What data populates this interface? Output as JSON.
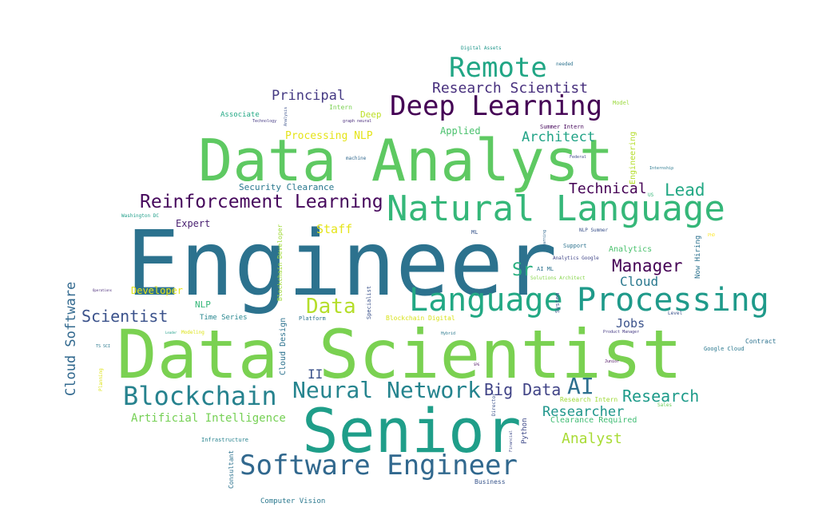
{
  "words": [
    {
      "text": "Engineer",
      "color": "#2c728e"
    },
    {
      "text": "Data Scientist",
      "color": "#7ad151"
    },
    {
      "text": "Data Analyst",
      "color": "#5ec962"
    },
    {
      "text": "Senior",
      "color": "#1f9e89"
    },
    {
      "text": "Natural Language",
      "color": "#35b779"
    },
    {
      "text": "Language",
      "color": "#22a884"
    },
    {
      "text": "Processing",
      "color": "#1f9a8a"
    },
    {
      "text": "Deep Learning",
      "color": "#440154"
    },
    {
      "text": "Remote",
      "color": "#21a685"
    },
    {
      "text": "Software Engineer",
      "color": "#31688e"
    },
    {
      "text": "Blockchain",
      "color": "#26828e"
    },
    {
      "text": "Neural Network",
      "color": "#25848e"
    },
    {
      "text": "Reinforcement Learning",
      "color": "#46085c"
    },
    {
      "text": "Research Scientist",
      "color": "#472f7d"
    },
    {
      "text": "Principal",
      "color": "#443983"
    },
    {
      "text": "Scientist",
      "color": "#3b528b"
    },
    {
      "text": "Data",
      "color": "#b5de2b"
    },
    {
      "text": "AI",
      "color": "#2d708e"
    },
    {
      "text": "Big Data",
      "color": "#414487"
    },
    {
      "text": "Research",
      "color": "#1e9b8a"
    },
    {
      "text": "Researcher",
      "color": "#1f968b"
    },
    {
      "text": "Analyst",
      "color": "#a8db34"
    },
    {
      "text": "Manager",
      "color": "#440154"
    },
    {
      "text": "Lead",
      "color": "#22a884"
    },
    {
      "text": "Technical",
      "color": "#440154"
    },
    {
      "text": "Architect",
      "color": "#20a386"
    },
    {
      "text": "Cloud",
      "color": "#2a788e"
    },
    {
      "text": "Sr",
      "color": "#29af7f"
    },
    {
      "text": "Jobs",
      "color": "#3b528b"
    },
    {
      "text": "Staff",
      "color": "#e5e419"
    },
    {
      "text": "Artificial Intelligence",
      "color": "#75d054"
    },
    {
      "text": "Processing NLP",
      "color": "#e5e419"
    },
    {
      "text": "Security Clearance",
      "color": "#2a788e"
    },
    {
      "text": "Expert",
      "color": "#481f70"
    },
    {
      "text": "Developer",
      "color": "#e5e419"
    },
    {
      "text": "II",
      "color": "#3b528b"
    },
    {
      "text": "Applied",
      "color": "#4ac16d"
    },
    {
      "text": "Deep",
      "color": "#bddf26"
    },
    {
      "text": "NLP",
      "color": "#35b779"
    },
    {
      "text": "Time Series",
      "color": "#25858e"
    },
    {
      "text": "Clearance Required",
      "color": "#3fbc73"
    },
    {
      "text": "Analytics",
      "color": "#4ac16d"
    },
    {
      "text": "Associate",
      "color": "#22a884"
    },
    {
      "text": "Intern",
      "color": "#7ad151"
    },
    {
      "text": "Platform",
      "color": "#2c728e"
    },
    {
      "text": "Blockchain Digital",
      "color": "#d8e219"
    },
    {
      "text": "Support",
      "color": "#2c728e"
    },
    {
      "text": "Research Intern",
      "color": "#a0da39"
    },
    {
      "text": "Computer Vision",
      "color": "#2a788e"
    },
    {
      "text": "Infrastructure",
      "color": "#26828e"
    },
    {
      "text": "Business",
      "color": "#39568c"
    },
    {
      "text": "Contract",
      "color": "#2c728e"
    },
    {
      "text": "Google Cloud",
      "color": "#2a788e"
    },
    {
      "text": "Solutions Architect",
      "color": "#86d549"
    },
    {
      "text": "AI ML",
      "color": "#2c728e"
    },
    {
      "text": "Analytics Google",
      "color": "#404688"
    },
    {
      "text": "NLP Summer",
      "color": "#3b528b"
    },
    {
      "text": "Product Manager",
      "color": "#443983"
    },
    {
      "text": "Washington DC",
      "color": "#1f9e89"
    },
    {
      "text": "Modeling",
      "color": "#dde318"
    },
    {
      "text": "Summer Intern",
      "color": "#46085c"
    },
    {
      "text": "machine",
      "color": "#31688e"
    },
    {
      "text": "Sales",
      "color": "#6ccd5a"
    },
    {
      "text": "Model",
      "color": "#9bd93c"
    },
    {
      "text": "Internship",
      "color": "#2a788e"
    },
    {
      "text": "Federal",
      "color": "#3e4989"
    },
    {
      "text": "Digital Assets",
      "color": "#1f968b"
    },
    {
      "text": "needed",
      "color": "#2c728e"
    },
    {
      "text": "ML",
      "color": "#39568c"
    },
    {
      "text": "Technology",
      "color": "#443983"
    },
    {
      "text": "graph neural",
      "color": "#472a7a"
    },
    {
      "text": "Hybrid",
      "color": "#2a788e"
    },
    {
      "text": "Level",
      "color": "#3b528b"
    },
    {
      "text": "TS SCI",
      "color": "#2a788e"
    },
    {
      "text": "SPG",
      "color": "#46085c"
    },
    {
      "text": "Junior",
      "color": "#46085c"
    },
    {
      "text": "PhD",
      "color": "#fde725"
    },
    {
      "text": "US",
      "color": "#35b779"
    },
    {
      "text": "Operations",
      "color": "#482878"
    },
    {
      "text": "Leader",
      "color": "#1f9e89"
    },
    {
      "text": "Cloud Software",
      "color": "#31688e"
    },
    {
      "text": "Blockchain Developer",
      "color": "#a0da39"
    },
    {
      "text": "Cloud Design",
      "color": "#2c728e"
    },
    {
      "text": "Engineering",
      "color": "#b5de2b"
    },
    {
      "text": "Now Hiring",
      "color": "#2c728e"
    },
    {
      "text": "Python",
      "color": "#3e4989"
    },
    {
      "text": "Consultant",
      "color": "#2c728e"
    },
    {
      "text": "Specialist",
      "color": "#3b528b"
    },
    {
      "text": "System",
      "color": "#3b528b"
    },
    {
      "text": "Director",
      "color": "#3b528b"
    },
    {
      "text": "Planning",
      "color": "#dde318"
    },
    {
      "text": "Learning",
      "color": "#31688e"
    },
    {
      "text": "Analysis",
      "color": "#3b528b"
    },
    {
      "text": "Financial",
      "color": "#3e4989"
    }
  ]
}
